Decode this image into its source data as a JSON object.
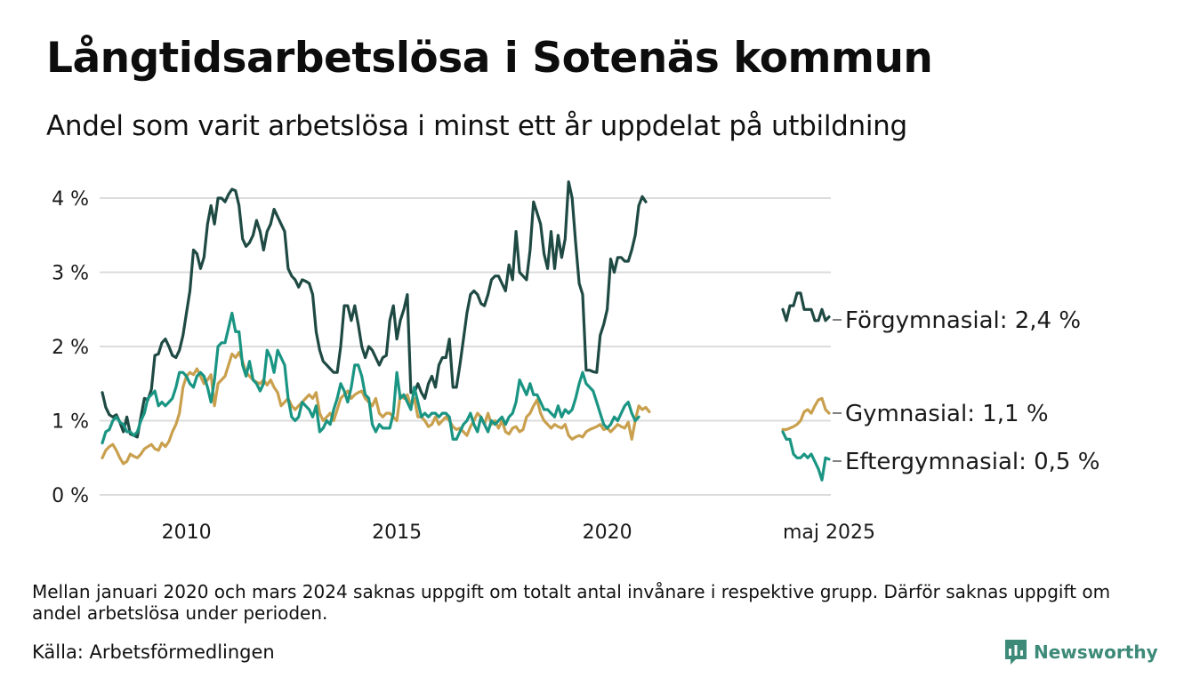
{
  "header": {
    "title": "Långtidsarbetslösa i Sotenäs kommun",
    "subtitle": "Andel som varit arbetslösa i minst ett år uppdelat på utbildning"
  },
  "footer": {
    "note": "Mellan januari 2020 och mars 2024 saknas uppgift om totalt antal invånare i respektive grupp. Därför saknas uppgift om andel arbetslösa under perioden.",
    "source": "Källa: Arbetsförmedlingen",
    "brand": "Newsworthy",
    "brand_color": "#3d8a78"
  },
  "chart_data": {
    "type": "line",
    "title": "Långtidsarbetslösa i Sotenäs kommun",
    "subtitle": "Andel som varit arbetslösa i minst ett år uppdelat på utbildning",
    "xlabel": "",
    "ylabel": "",
    "ylim": [
      0,
      4.4
    ],
    "y_ticks": [
      0,
      1,
      2,
      3,
      4
    ],
    "y_tick_labels": [
      "0 %",
      "1 %",
      "2 %",
      "3 %",
      "4 %"
    ],
    "x_tick_labels": [
      "2010",
      "2015",
      "2020",
      "maj 2025"
    ],
    "grid": true,
    "legend": "direct labels at right end of lines",
    "gap_note": "Data missing January 2020 – March 2024",
    "series": [
      {
        "name": "Förgymnasial",
        "label": "Förgymnasial: 2,4 %",
        "color": "#1f4a44",
        "segments": [
          {
            "start": "2008-01",
            "values": [
              1.38,
              1.18,
              1.08,
              1.05,
              1.08,
              0.98,
              0.85,
              1.05,
              0.82,
              0.8,
              0.78,
              1.05,
              1.3,
              1.28,
              1.42,
              1.88,
              1.9,
              2.05,
              2.1,
              2.0,
              1.88,
              1.85,
              1.95,
              2.15,
              2.45,
              2.75,
              3.3,
              3.25,
              3.05,
              3.2,
              3.65,
              3.9,
              3.65,
              4.0,
              4.0,
              3.95,
              4.05,
              4.12,
              4.1,
              3.9,
              3.45,
              3.35,
              3.4,
              3.5,
              3.7,
              3.55,
              3.3,
              3.55,
              3.65,
              3.85,
              3.75,
              3.65,
              3.55,
              3.05,
              2.95,
              2.9,
              2.8,
              2.9,
              2.88,
              2.85,
              2.7,
              2.2,
              1.95,
              1.8,
              1.75,
              1.7,
              1.65,
              1.65,
              2.0,
              2.55,
              2.55,
              2.35,
              2.55,
              2.3,
              2.0,
              1.85,
              2.0,
              1.95,
              1.85,
              1.75,
              1.85,
              1.88,
              2.35,
              2.55,
              2.1,
              2.35,
              2.5,
              2.7,
              1.38,
              1.38,
              1.5,
              1.38,
              1.3,
              1.5,
              1.6,
              1.45,
              1.75,
              1.85,
              1.85,
              2.1,
              1.45,
              1.45,
              1.75,
              2.1,
              2.45,
              2.7,
              2.75,
              2.7,
              2.58,
              2.55,
              2.7,
              2.9,
              2.95,
              2.95,
              2.85,
              2.75,
              3.1,
              2.9,
              3.55,
              3.0,
              2.95,
              2.9,
              3.3,
              3.95,
              3.8,
              3.65,
              3.25,
              3.05,
              3.55,
              3.05,
              3.5,
              3.2,
              3.45,
              4.22,
              4.0,
              3.4,
              2.85,
              2.7,
              1.68,
              1.68,
              1.66,
              1.65,
              2.15,
              2.3,
              2.5,
              3.18,
              3.0,
              3.2,
              3.2,
              3.15,
              3.15,
              3.3,
              3.5,
              3.9,
              4.02,
              3.95
            ]
          },
          {
            "start": "2024-04",
            "values": [
              2.5,
              2.35,
              2.55,
              2.55,
              2.72,
              2.72,
              2.5,
              2.5,
              2.5,
              2.35,
              2.35,
              2.5,
              2.35,
              2.4
            ]
          }
        ]
      },
      {
        "name": "Gymnasial",
        "label": "Gymnasial: 1,1 %",
        "color": "#c9a04e",
        "segments": [
          {
            "start": "2008-01",
            "values": [
              0.5,
              0.6,
              0.65,
              0.68,
              0.6,
              0.5,
              0.42,
              0.45,
              0.55,
              0.52,
              0.5,
              0.55,
              0.62,
              0.65,
              0.68,
              0.62,
              0.6,
              0.7,
              0.65,
              0.72,
              0.85,
              0.95,
              1.1,
              1.45,
              1.6,
              1.65,
              1.62,
              1.7,
              1.6,
              1.5,
              1.55,
              1.62,
              1.2,
              1.5,
              1.55,
              1.6,
              1.75,
              1.9,
              1.85,
              1.92,
              1.8,
              1.65,
              1.6,
              1.55,
              1.52,
              1.5,
              1.55,
              1.48,
              1.55,
              1.45,
              1.38,
              1.2,
              1.25,
              1.3,
              1.2,
              1.15,
              1.2,
              1.25,
              1.3,
              1.35,
              1.3,
              1.38,
              1.1,
              1.0,
              1.05,
              1.1,
              1.0,
              1.15,
              1.3,
              1.35,
              1.4,
              1.3,
              1.35,
              1.38,
              1.4,
              1.3,
              1.25,
              1.2,
              1.3,
              1.1,
              1.05,
              1.1,
              1.1,
              1.05,
              1.0,
              1.35,
              1.3,
              1.35,
              1.2,
              1.3,
              1.05,
              1.05,
              1.0,
              0.92,
              0.95,
              1.05,
              0.95,
              1.0,
              1.05,
              1.0,
              0.92,
              0.88,
              0.9,
              0.85,
              0.8,
              0.92,
              1.0,
              1.1,
              1.05,
              0.95,
              1.1,
              0.95,
              1.0,
              0.9,
              1.0,
              0.85,
              0.82,
              0.9,
              0.92,
              0.85,
              0.88,
              1.05,
              1.1,
              1.2,
              1.28,
              1.1,
              1.0,
              0.95,
              0.9,
              0.95,
              0.92,
              0.9,
              0.95,
              0.8,
              0.75,
              0.78,
              0.8,
              0.78,
              0.85,
              0.88,
              0.9,
              0.92,
              0.95,
              0.88,
              0.9,
              0.85,
              0.9,
              0.95,
              0.92,
              0.9,
              0.98,
              0.75,
              1.0,
              1.2,
              1.15,
              1.18,
              1.12
            ]
          },
          {
            "start": "2024-04",
            "values": [
              0.88,
              0.88,
              0.9,
              0.92,
              0.95,
              1.0,
              1.12,
              1.15,
              1.1,
              1.2,
              1.28,
              1.3,
              1.15,
              1.1
            ]
          }
        ]
      },
      {
        "name": "Eftergymnasial",
        "label": "Eftergymnasial: 0,5 %",
        "color": "#1a9583",
        "segments": [
          {
            "start": "2008-01",
            "values": [
              0.7,
              0.85,
              0.88,
              1.0,
              1.05,
              0.98,
              0.95,
              0.85,
              0.85,
              0.8,
              0.85,
              1.0,
              1.1,
              1.3,
              1.35,
              1.4,
              1.2,
              1.25,
              1.2,
              1.25,
              1.3,
              1.45,
              1.65,
              1.65,
              1.6,
              1.5,
              1.45,
              1.6,
              1.65,
              1.6,
              1.45,
              1.25,
              1.55,
              2.0,
              2.05,
              2.05,
              2.25,
              2.45,
              2.2,
              2.2,
              1.75,
              1.6,
              1.8,
              1.55,
              1.5,
              1.4,
              1.5,
              1.95,
              1.85,
              1.65,
              1.95,
              1.85,
              1.75,
              1.3,
              1.05,
              1.0,
              1.05,
              1.25,
              1.2,
              1.15,
              1.05,
              1.2,
              0.85,
              0.9,
              1.0,
              0.95,
              1.15,
              1.3,
              1.5,
              1.4,
              1.25,
              1.45,
              1.75,
              1.75,
              1.6,
              1.35,
              1.3,
              0.95,
              0.85,
              0.95,
              0.9,
              0.9,
              0.9,
              1.1,
              1.65,
              1.3,
              1.35,
              1.25,
              1.15,
              1.45,
              1.25,
              1.05,
              1.1,
              1.05,
              1.1,
              1.1,
              1.05,
              1.1,
              1.1,
              1.05,
              0.75,
              0.75,
              0.85,
              0.95,
              1.0,
              1.1,
              0.95,
              0.85,
              1.05,
              0.95,
              0.85,
              1.0,
              0.95,
              1.0,
              1.05,
              0.95,
              1.05,
              1.1,
              1.25,
              1.55,
              1.45,
              1.35,
              1.5,
              1.35,
              1.35,
              1.25,
              1.15,
              1.15,
              1.1,
              1.05,
              1.2,
              1.05,
              1.15,
              1.1,
              1.15,
              1.3,
              1.5,
              1.65,
              1.5,
              1.45,
              1.4,
              1.25,
              1.1,
              0.95,
              0.9,
              0.95,
              1.05,
              1.0,
              1.1,
              1.2,
              1.25,
              1.1,
              1.0,
              1.05
            ]
          },
          {
            "start": "2024-04",
            "values": [
              0.85,
              0.75,
              0.75,
              0.55,
              0.5,
              0.5,
              0.55,
              0.5,
              0.55,
              0.45,
              0.35,
              0.2,
              0.5,
              0.48
            ]
          }
        ]
      }
    ]
  }
}
